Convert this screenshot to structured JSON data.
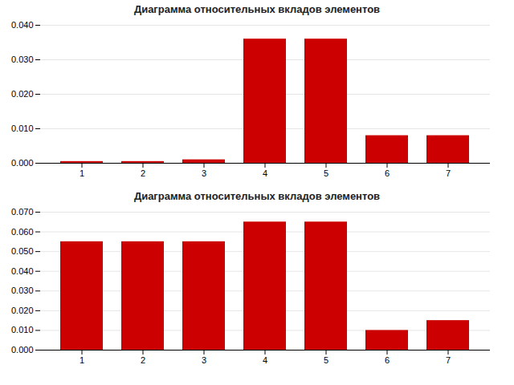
{
  "chart_data": [
    {
      "type": "bar",
      "title": "Диаграмма относительных вкладов элементов",
      "categories": [
        "1",
        "2",
        "3",
        "4",
        "5",
        "6",
        "7"
      ],
      "values": [
        0.0005,
        0.0005,
        0.001,
        0.036,
        0.036,
        0.008,
        0.008
      ],
      "color": "#cc0000",
      "ylim": [
        0,
        0.04
      ],
      "yticks": [
        0,
        0.01,
        0.02,
        0.03,
        0.04
      ],
      "grid": true
    },
    {
      "type": "bar",
      "title": "Диаграмма относительных вкладов элементов",
      "categories": [
        "1",
        "2",
        "3",
        "4",
        "5",
        "6",
        "7"
      ],
      "values": [
        0.055,
        0.055,
        0.055,
        0.065,
        0.065,
        0.01,
        0.015
      ],
      "color": "#cc0000",
      "ylim": [
        0,
        0.07
      ],
      "yticks": [
        0,
        0.01,
        0.02,
        0.03,
        0.04,
        0.05,
        0.06,
        0.07
      ],
      "grid": true
    }
  ]
}
